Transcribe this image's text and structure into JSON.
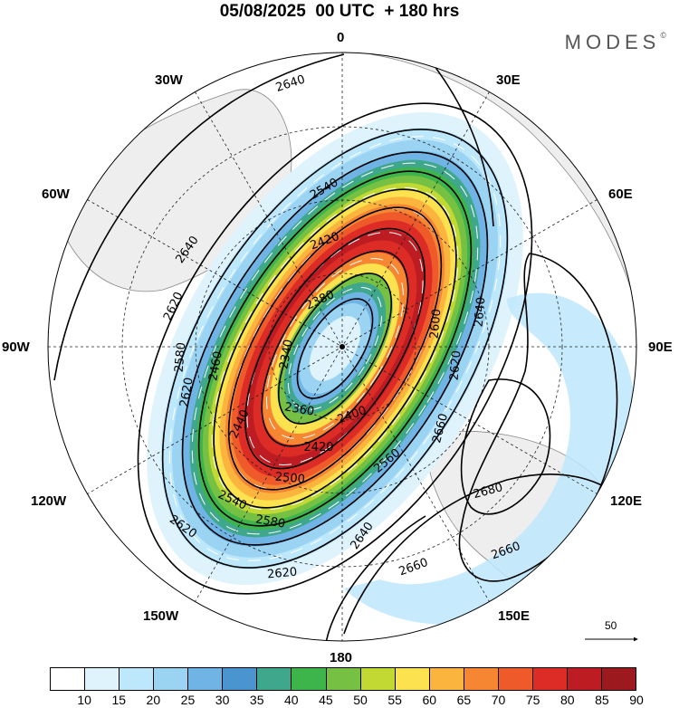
{
  "title": "05/08/2025  00 UTC  + 180 hrs",
  "brand": "MODES",
  "brand_mark": "©",
  "longitude_labels": {
    "lon0": "0",
    "lon30e": "30E",
    "lon60e": "60E",
    "lon90e": "90E",
    "lon120e": "120E",
    "lon150e": "150E",
    "lon180": "180",
    "lon150w": "150W",
    "lon120w": "120W",
    "lon90w": "90W",
    "lon60w": "60W",
    "lon30w": "30W"
  },
  "contour_labels": [
    "2640",
    "2640",
    "2620",
    "2540",
    "2420",
    "2380",
    "2340",
    "2360",
    "2400",
    "2420",
    "2500",
    "2540",
    "2580",
    "2620",
    "2620",
    "2640",
    "2620",
    "2660",
    "2680",
    "2660",
    "2640",
    "2620",
    "2580",
    "2460",
    "2440",
    "2560",
    "2600",
    "2660"
  ],
  "vector_reference": "50",
  "colorbar": {
    "ticks": [
      "10",
      "15",
      "20",
      "25",
      "30",
      "35",
      "40",
      "45",
      "50",
      "55",
      "60",
      "65",
      "70",
      "75",
      "80",
      "85",
      "90"
    ],
    "colors": [
      "#ffffff",
      "#dff3fd",
      "#bde7fb",
      "#9bd3f3",
      "#6fb4e5",
      "#4a95cf",
      "#3fa78c",
      "#3db54a",
      "#76c043",
      "#c2d934",
      "#fde24f",
      "#fbb53f",
      "#f78632",
      "#ee5a2a",
      "#dd2b25",
      "#bd1c23",
      "#9c1a1e"
    ]
  },
  "colors": {
    "land": "#eeeeee",
    "coast": "#888888",
    "grid": "#222222"
  }
}
